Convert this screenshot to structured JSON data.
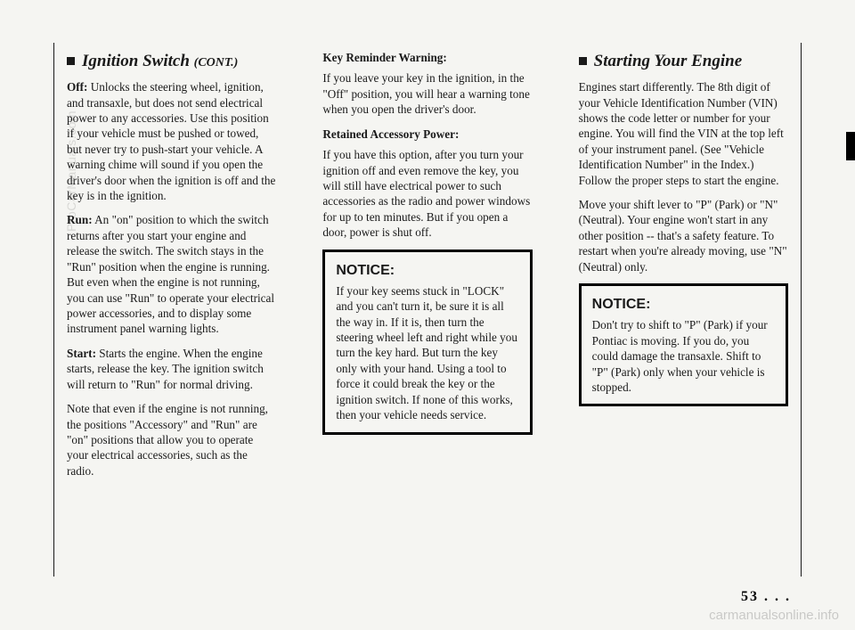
{
  "col1": {
    "heading": "Ignition Switch",
    "cont": "(CONT.)",
    "off_label": "Off:",
    "off_text": " Unlocks the steering wheel, ignition, and transaxle, but does not send electrical power to any accessories. Use this position if your vehicle must be pushed or towed, but never try to push-start your vehicle. A warning chime will sound if you open the driver's door when the ignition is off and the key is in the ignition.",
    "run_label": "Run:",
    "run_text": " An \"on\" position to which the switch returns after you start your engine and release the switch. The switch stays in the \"Run\" position when the engine is running. But even when the engine is not running, you can use \"Run\" to operate your electrical power accessories, and to display some instrument panel warning lights.",
    "start_label": "Start:",
    "start_text": " Starts the engine. When the engine starts, release the key. The ignition switch will return to \"Run\" for normal driving.",
    "note_text": "Note that even if the engine is not running, the positions \"Accessory\" and \"Run\" are \"on\" positions that allow you to operate your electrical accessories, such as the radio."
  },
  "col2": {
    "key_reminder_head": "Key Reminder Warning:",
    "key_reminder_text": "If you leave your key in the ignition, in the \"Off\" position, you will hear a warning tone when you open the driver's door.",
    "retained_head": "Retained Accessory Power:",
    "retained_text": "If you have this option, after you turn your ignition off and even remove the key, you will still have electrical power to such accessories as the radio and power windows for up to ten minutes. But if you open a door, power is shut off.",
    "notice_title": "NOTICE:",
    "notice_text": "If your key seems stuck in \"LOCK\" and you can't turn it, be sure it is all the way in. If it is, then turn the steering wheel left and right while you turn the key hard. But turn the key only with your hand. Using a tool to force it could break the key or the ignition switch. If none of this works, then your vehicle needs service."
  },
  "col3": {
    "heading": "Starting Your Engine",
    "p1": "Engines start differently. The 8th digit of your Vehicle Identification Number (VIN) shows the code letter or number for your engine. You will find the VIN at the top left of your instrument panel. (See \"Vehicle Identification Number\" in the Index.) Follow the proper steps to start the engine.",
    "p2": "Move your shift lever to \"P\" (Park) or \"N\" (Neutral). Your engine won't start in any other position -- that's a safety feature. To restart when you're already moving, use \"N\" (Neutral) only.",
    "notice_title": "NOTICE:",
    "notice_text": "Don't try to shift to \"P\" (Park) if your Pontiac is moving. If you do, you could damage the transaxle. Shift to \"P\" (Park) only when your vehicle is stopped."
  },
  "pagenum": "53 . . .",
  "watermark_side": "ProCarManuals.com",
  "watermark_bottom": "carmanualsonline.info"
}
